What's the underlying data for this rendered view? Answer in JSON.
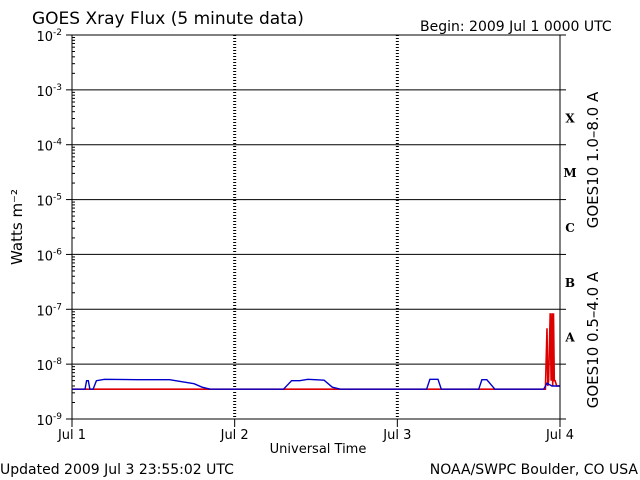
{
  "header": {
    "title": "GOES Xray Flux (5 minute data)",
    "begin": "Begin:  2009 Jul 1 0000 UTC"
  },
  "footer": {
    "updated": "Updated 2009 Jul  3 23:55:02 UTC",
    "source": "NOAA/SWPC Boulder, CO USA"
  },
  "chart_data": {
    "type": "line",
    "title": "GOES Xray Flux (5 minute data)",
    "xlabel": "Universal Time",
    "ylabel": "Watts m⁻²",
    "y_scale": "log",
    "ylim": [
      1e-09,
      0.01
    ],
    "xlim": [
      0,
      3
    ],
    "x_unit": "days since 2009 Jul 1 0000 UTC",
    "x_ticks": [
      {
        "value": 0,
        "label": "Jul 1"
      },
      {
        "value": 1,
        "label": "Jul 2"
      },
      {
        "value": 2,
        "label": "Jul 3"
      },
      {
        "value": 3,
        "label": "Jul 4"
      }
    ],
    "y_ticks": [
      {
        "exp": -9
      },
      {
        "exp": -8
      },
      {
        "exp": -7
      },
      {
        "exp": -6
      },
      {
        "exp": -5
      },
      {
        "exp": -4
      },
      {
        "exp": -3
      },
      {
        "exp": -2
      }
    ],
    "grid": "horizontal at each decade",
    "flare_classes": [
      {
        "label": "A",
        "low": 1e-08,
        "high": 1e-07
      },
      {
        "label": "B",
        "low": 1e-07,
        "high": 1e-06
      },
      {
        "label": "C",
        "low": 1e-06,
        "high": 1e-05
      },
      {
        "label": "M",
        "low": 1e-05,
        "high": 0.0001
      },
      {
        "label": "X",
        "low": 0.0001,
        "high": 0.001
      }
    ],
    "series": [
      {
        "name": "GOES10 1.0–8.0 A",
        "color": "#dd0000",
        "x": [
          0,
          0.5,
          1.0,
          1.5,
          2.0,
          2.5,
          2.9,
          2.91,
          2.92,
          2.925,
          2.93,
          2.935,
          2.94,
          2.945,
          2.95,
          2.955,
          2.96,
          2.965,
          2.97,
          2.98,
          3.0
        ],
        "y": [
          3.5e-09,
          3.5e-09,
          3.5e-09,
          3.5e-09,
          3.5e-09,
          3.5e-09,
          3.5e-09,
          3.5e-09,
          4.5e-08,
          4e-09,
          5e-09,
          2e-08,
          8.5e-08,
          5e-09,
          8.5e-08,
          4e-09,
          8.5e-08,
          5e-09,
          5e-09,
          4e-09,
          4e-09
        ]
      },
      {
        "name": "GOES10 0.5–4.0 A",
        "color": "#0000cc",
        "x": [
          0,
          0.08,
          0.09,
          0.1,
          0.11,
          0.13,
          0.15,
          0.2,
          0.4,
          0.6,
          0.75,
          0.8,
          0.85,
          1.0,
          1.2,
          1.3,
          1.35,
          1.4,
          1.45,
          1.55,
          1.6,
          1.65,
          2.0,
          2.18,
          2.2,
          2.25,
          2.27,
          2.3,
          2.5,
          2.52,
          2.55,
          2.6,
          2.63,
          2.9,
          2.92,
          2.95,
          3.0
        ],
        "y": [
          3.5e-09,
          3.5e-09,
          5e-09,
          5e-09,
          3.5e-09,
          3.5e-09,
          5e-09,
          5.3e-09,
          5.2e-09,
          5.2e-09,
          4.4e-09,
          3.8e-09,
          3.5e-09,
          3.5e-09,
          3.5e-09,
          3.5e-09,
          5e-09,
          5e-09,
          5.3e-09,
          5.1e-09,
          3.8e-09,
          3.5e-09,
          3.5e-09,
          3.5e-09,
          5.3e-09,
          5.3e-09,
          3.5e-09,
          3.5e-09,
          3.5e-09,
          5.2e-09,
          5.2e-09,
          3.5e-09,
          3.5e-09,
          3.5e-09,
          4.5e-09,
          4e-09,
          4e-09
        ]
      }
    ]
  }
}
